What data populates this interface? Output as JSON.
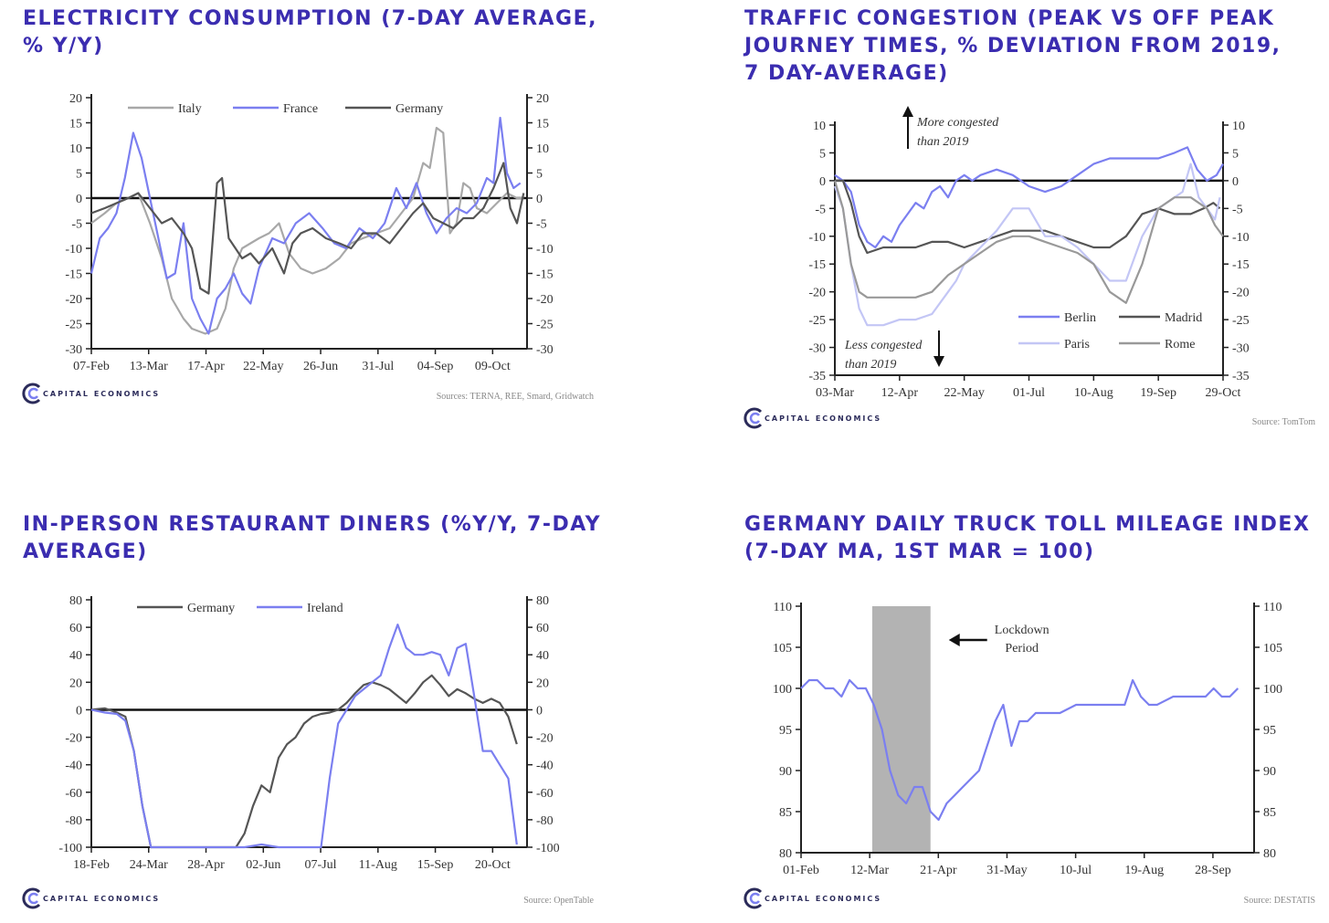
{
  "brand": {
    "name": "CAPITAL ECONOMICS"
  },
  "chart_data": [
    {
      "id": "electricity",
      "type": "line",
      "title": "ELECTRICITY CONSUMPTION (7-DAY AVERAGE, % Y/Y)",
      "x_ticks": [
        "07-Feb",
        "13-Mar",
        "17-Apr",
        "22-May",
        "26-Jun",
        "31-Jul",
        "04-Sep",
        "09-Oct"
      ],
      "y_ticks": [
        20,
        15,
        10,
        5,
        0,
        -5,
        -10,
        -15,
        -20,
        -25,
        -30
      ],
      "ylim": [
        -30,
        20
      ],
      "xlim": [
        0,
        260
      ],
      "legend": [
        "Italy",
        "France",
        "Germany"
      ],
      "source": "Sources: TERNA, REE, Smard, Gridwatch",
      "series": [
        {
          "name": "Italy",
          "color": "#a8a8a8",
          "x": [
            0,
            8,
            15,
            22,
            28,
            35,
            42,
            48,
            55,
            60,
            68,
            75,
            80,
            85,
            90,
            95,
            100,
            106,
            112,
            118,
            125,
            132,
            140,
            148,
            155,
            162,
            170,
            178,
            185,
            192,
            198,
            202,
            206,
            210,
            214,
            218,
            222,
            226,
            230,
            236,
            242,
            248,
            254,
            258
          ],
          "y": [
            -5,
            -3,
            -1,
            0,
            1,
            -5,
            -12,
            -20,
            -24,
            -26,
            -27,
            -26,
            -22,
            -14,
            -10,
            -9,
            -8,
            -7,
            -5,
            -11,
            -14,
            -15,
            -14,
            -12,
            -9,
            -8,
            -7,
            -6,
            -3,
            0,
            7,
            6,
            14,
            13,
            -7,
            -5,
            3,
            2,
            -2,
            -3,
            -1,
            1,
            0,
            0
          ]
        },
        {
          "name": "France",
          "color": "#7b7ff0",
          "x": [
            0,
            5,
            10,
            15,
            20,
            25,
            30,
            35,
            40,
            45,
            50,
            55,
            60,
            65,
            70,
            75,
            80,
            85,
            90,
            95,
            100,
            108,
            115,
            122,
            130,
            138,
            145,
            152,
            160,
            168,
            175,
            182,
            188,
            194,
            200,
            206,
            212,
            218,
            224,
            230,
            236,
            240,
            244,
            248,
            252,
            256
          ],
          "y": [
            -15,
            -8,
            -6,
            -3,
            4,
            13,
            8,
            0,
            -8,
            -16,
            -15,
            -5,
            -20,
            -24,
            -27,
            -20,
            -18,
            -15,
            -19,
            -21,
            -14,
            -8,
            -9,
            -5,
            -3,
            -6,
            -9,
            -10,
            -6,
            -8,
            -5,
            2,
            -2,
            3,
            -3,
            -7,
            -4,
            -2,
            -3,
            -1,
            4,
            3,
            16,
            5,
            2,
            3
          ]
        },
        {
          "name": "Germany",
          "color": "#555555",
          "x": [
            0,
            8,
            15,
            22,
            28,
            35,
            42,
            48,
            55,
            60,
            65,
            70,
            75,
            78,
            82,
            86,
            90,
            95,
            100,
            108,
            115,
            120,
            125,
            132,
            140,
            148,
            155,
            162,
            170,
            178,
            185,
            192,
            198,
            204,
            210,
            216,
            222,
            228,
            234,
            240,
            246,
            250,
            254,
            258
          ],
          "y": [
            -3,
            -2,
            -1,
            0,
            1,
            -2,
            -5,
            -4,
            -7,
            -10,
            -18,
            -19,
            3,
            4,
            -8,
            -10,
            -12,
            -11,
            -13,
            -10,
            -15,
            -9,
            -7,
            -6,
            -8,
            -9,
            -10,
            -7,
            -7,
            -9,
            -6,
            -3,
            -1,
            -4,
            -5,
            -6,
            -4,
            -4,
            -2,
            2,
            7,
            -2,
            -5,
            1
          ]
        }
      ]
    },
    {
      "id": "traffic",
      "type": "line",
      "title": "TRAFFIC CONGESTION (PEAK VS OFF PEAK JOURNEY TIMES, % DEVIATION FROM 2019, 7 DAY-AVERAGE)",
      "x_ticks": [
        "03-Mar",
        "12-Apr",
        "22-May",
        "01-Jul",
        "10-Aug",
        "19-Sep",
        "29-Oct"
      ],
      "y_ticks": [
        10,
        5,
        0,
        -5,
        -10,
        -15,
        -20,
        -25,
        -30,
        -35
      ],
      "ylim": [
        -35,
        10
      ],
      "xlim": [
        0,
        240
      ],
      "legend": [
        "Berlin",
        "Madrid",
        "Paris",
        "Rome"
      ],
      "annotations": [
        {
          "text": "More congested",
          "text2": "than 2019"
        },
        {
          "text": "Less congested",
          "text2": "than 2019"
        }
      ],
      "source": "Source: TomTom",
      "series": [
        {
          "name": "Berlin",
          "color": "#7b7ff0",
          "x": [
            0,
            5,
            10,
            15,
            20,
            25,
            30,
            35,
            40,
            45,
            50,
            55,
            60,
            65,
            70,
            75,
            80,
            85,
            90,
            100,
            110,
            120,
            130,
            140,
            150,
            160,
            170,
            180,
            190,
            200,
            210,
            218,
            224,
            230,
            236,
            240
          ],
          "y": [
            1,
            0,
            -2,
            -8,
            -11,
            -12,
            -10,
            -11,
            -8,
            -6,
            -4,
            -5,
            -2,
            -1,
            -3,
            0,
            1,
            0,
            1,
            2,
            1,
            -1,
            -2,
            -1,
            1,
            3,
            4,
            4,
            4,
            4,
            5,
            6,
            2,
            0,
            1,
            3
          ]
        },
        {
          "name": "Madrid",
          "color": "#555555",
          "x": [
            0,
            5,
            10,
            15,
            20,
            30,
            40,
            50,
            60,
            70,
            80,
            90,
            100,
            110,
            120,
            130,
            140,
            150,
            160,
            170,
            180,
            190,
            200,
            210,
            220,
            228,
            234,
            238
          ],
          "y": [
            0,
            0,
            -4,
            -10,
            -13,
            -12,
            -12,
            -12,
            -11,
            -11,
            -12,
            -11,
            -10,
            -9,
            -9,
            -9,
            -10,
            -11,
            -12,
            -12,
            -10,
            -6,
            -5,
            -6,
            -6,
            -5,
            -4,
            -5
          ]
        },
        {
          "name": "Paris",
          "color": "#c3c6f5",
          "x": [
            0,
            5,
            10,
            15,
            20,
            25,
            30,
            40,
            50,
            60,
            70,
            75,
            80,
            90,
            100,
            110,
            120,
            130,
            140,
            150,
            160,
            170,
            180,
            190,
            200,
            210,
            215,
            220,
            225,
            230,
            235,
            238
          ],
          "y": [
            -1,
            -5,
            -15,
            -23,
            -26,
            -26,
            -26,
            -25,
            -25,
            -24,
            -20,
            -18,
            -15,
            -12,
            -9,
            -5,
            -5,
            -10,
            -10,
            -12,
            -15,
            -18,
            -18,
            -10,
            -5,
            -3,
            -2,
            3,
            -3,
            -5,
            -7,
            -3
          ]
        },
        {
          "name": "Rome",
          "color": "#999999",
          "x": [
            0,
            5,
            10,
            15,
            20,
            30,
            40,
            50,
            60,
            70,
            80,
            90,
            100,
            110,
            120,
            130,
            140,
            150,
            160,
            170,
            180,
            190,
            200,
            210,
            220,
            230,
            235,
            240
          ],
          "y": [
            0,
            -5,
            -15,
            -20,
            -21,
            -21,
            -21,
            -21,
            -20,
            -17,
            -15,
            -13,
            -11,
            -10,
            -10,
            -11,
            -12,
            -13,
            -15,
            -20,
            -22,
            -15,
            -5,
            -3,
            -3,
            -5,
            -8,
            -10
          ]
        }
      ]
    },
    {
      "id": "restaurants",
      "type": "line",
      "title": "IN-PERSON RESTAURANT DINERS (%Y/Y, 7-DAY AVERAGE)",
      "x_ticks": [
        "18-Feb",
        "24-Mar",
        "28-Apr",
        "02-Jun",
        "07-Jul",
        "11-Aug",
        "15-Sep",
        "20-Oct"
      ],
      "y_ticks": [
        80,
        60,
        40,
        20,
        0,
        -20,
        -40,
        -60,
        -80,
        -100
      ],
      "ylim": [
        -100,
        80
      ],
      "xlim": [
        0,
        256
      ],
      "legend": [
        "Germany",
        "Ireland"
      ],
      "source": "Source: OpenTable",
      "series": [
        {
          "name": "Germany",
          "color": "#555555",
          "x": [
            0,
            8,
            15,
            20,
            25,
            30,
            35,
            40,
            50,
            60,
            70,
            80,
            85,
            90,
            95,
            100,
            105,
            110,
            115,
            120,
            125,
            130,
            135,
            140,
            145,
            150,
            155,
            160,
            165,
            170,
            175,
            180,
            185,
            190,
            195,
            200,
            205,
            210,
            215,
            220,
            225,
            230,
            235,
            240,
            245,
            250
          ],
          "y": [
            0,
            1,
            -2,
            -5,
            -30,
            -70,
            -100,
            -100,
            -100,
            -100,
            -100,
            -100,
            -100,
            -90,
            -70,
            -55,
            -60,
            -35,
            -25,
            -20,
            -10,
            -5,
            -3,
            -2,
            0,
            5,
            12,
            18,
            20,
            18,
            15,
            10,
            5,
            12,
            20,
            25,
            18,
            10,
            15,
            12,
            8,
            5,
            8,
            5,
            -5,
            -25
          ]
        },
        {
          "name": "Ireland",
          "color": "#7b7ff0",
          "x": [
            0,
            8,
            15,
            20,
            25,
            30,
            35,
            40,
            50,
            60,
            70,
            80,
            90,
            100,
            110,
            120,
            130,
            135,
            140,
            145,
            150,
            155,
            160,
            165,
            170,
            175,
            180,
            185,
            190,
            195,
            200,
            205,
            210,
            215,
            220,
            225,
            230,
            235,
            240,
            245,
            250
          ],
          "y": [
            0,
            -2,
            -3,
            -8,
            -30,
            -70,
            -100,
            -100,
            -100,
            -100,
            -100,
            -100,
            -100,
            -98,
            -100,
            -100,
            -100,
            -100,
            -50,
            -10,
            0,
            10,
            15,
            20,
            25,
            45,
            62,
            45,
            40,
            40,
            42,
            40,
            25,
            45,
            48,
            10,
            -30,
            -30,
            -40,
            -50,
            -98
          ]
        }
      ]
    },
    {
      "id": "truck-toll",
      "type": "line",
      "title": "GERMANY DAILY TRUCK TOLL MILEAGE INDEX (7-DAY MA, 1ST MAR = 100)",
      "x_ticks": [
        "01-Feb",
        "12-Mar",
        "21-Apr",
        "31-May",
        "10-Jul",
        "19-Aug",
        "28-Sep"
      ],
      "y_ticks": [
        110,
        105,
        100,
        95,
        90,
        85,
        80
      ],
      "ylim": [
        80,
        110
      ],
      "xlim": [
        0,
        280
      ],
      "shaded_region": {
        "x_start": 44,
        "x_end": 80,
        "label_line1": "Lockdown",
        "label_line2": "Period"
      },
      "source": "Source: DESTATIS",
      "series": [
        {
          "name": "Truck toll index",
          "color": "#7b7ff0",
          "x": [
            0,
            5,
            10,
            15,
            20,
            25,
            30,
            35,
            40,
            45,
            50,
            55,
            60,
            65,
            70,
            75,
            80,
            85,
            90,
            95,
            100,
            105,
            110,
            115,
            120,
            125,
            130,
            135,
            140,
            145,
            150,
            160,
            170,
            180,
            190,
            200,
            205,
            210,
            215,
            220,
            230,
            240,
            250,
            255,
            260,
            265,
            270
          ],
          "y": [
            100,
            101,
            101,
            100,
            100,
            99,
            101,
            100,
            100,
            98,
            95,
            90,
            87,
            86,
            88,
            88,
            85,
            84,
            86,
            87,
            88,
            89,
            90,
            93,
            96,
            98,
            93,
            96,
            96,
            97,
            97,
            97,
            98,
            98,
            98,
            98,
            101,
            99,
            98,
            98,
            99,
            99,
            99,
            100,
            99,
            99,
            100
          ]
        }
      ]
    }
  ]
}
